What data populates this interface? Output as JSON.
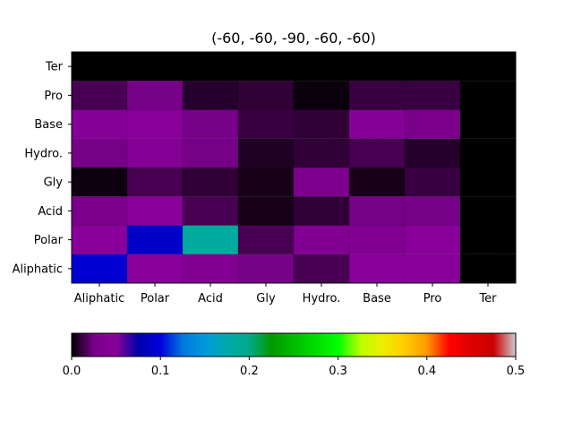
{
  "chart_data": {
    "type": "heatmap",
    "title": "(-60, -60, -90, -60, -60)",
    "x_categories": [
      "Aliphatic",
      "Polar",
      "Acid",
      "Gly",
      "Hydro.",
      "Base",
      "Pro",
      "Ter"
    ],
    "y_categories": [
      "Aliphatic",
      "Polar",
      "Acid",
      "Gly",
      "Hydro.",
      "Base",
      "Pro",
      "Ter"
    ],
    "values": [
      [
        0.095,
        0.05,
        0.04,
        0.025,
        0.015,
        0.05,
        0.05,
        0.0
      ],
      [
        0.05,
        0.09,
        0.185,
        0.015,
        0.04,
        0.04,
        0.05,
        0.0
      ],
      [
        0.03,
        0.05,
        0.015,
        0.005,
        0.01,
        0.025,
        0.025,
        0.0
      ],
      [
        0.003,
        0.015,
        0.01,
        0.005,
        0.035,
        0.005,
        0.012,
        0.0
      ],
      [
        0.025,
        0.045,
        0.025,
        0.007,
        0.01,
        0.015,
        0.008,
        0.0
      ],
      [
        0.045,
        0.05,
        0.025,
        0.012,
        0.01,
        0.045,
        0.03,
        0.0
      ],
      [
        0.015,
        0.025,
        0.008,
        0.01,
        0.002,
        0.012,
        0.012,
        0.0
      ],
      [
        0.0,
        0.0,
        0.0,
        0.0,
        0.0,
        0.0,
        0.0,
        0.0
      ]
    ],
    "colorbar": {
      "min": 0.0,
      "max": 0.5,
      "ticks": [
        "0.0",
        "0.1",
        "0.2",
        "0.3",
        "0.4",
        "0.5"
      ],
      "colormap": "nipy_spectral",
      "orientation": "horizontal"
    }
  }
}
